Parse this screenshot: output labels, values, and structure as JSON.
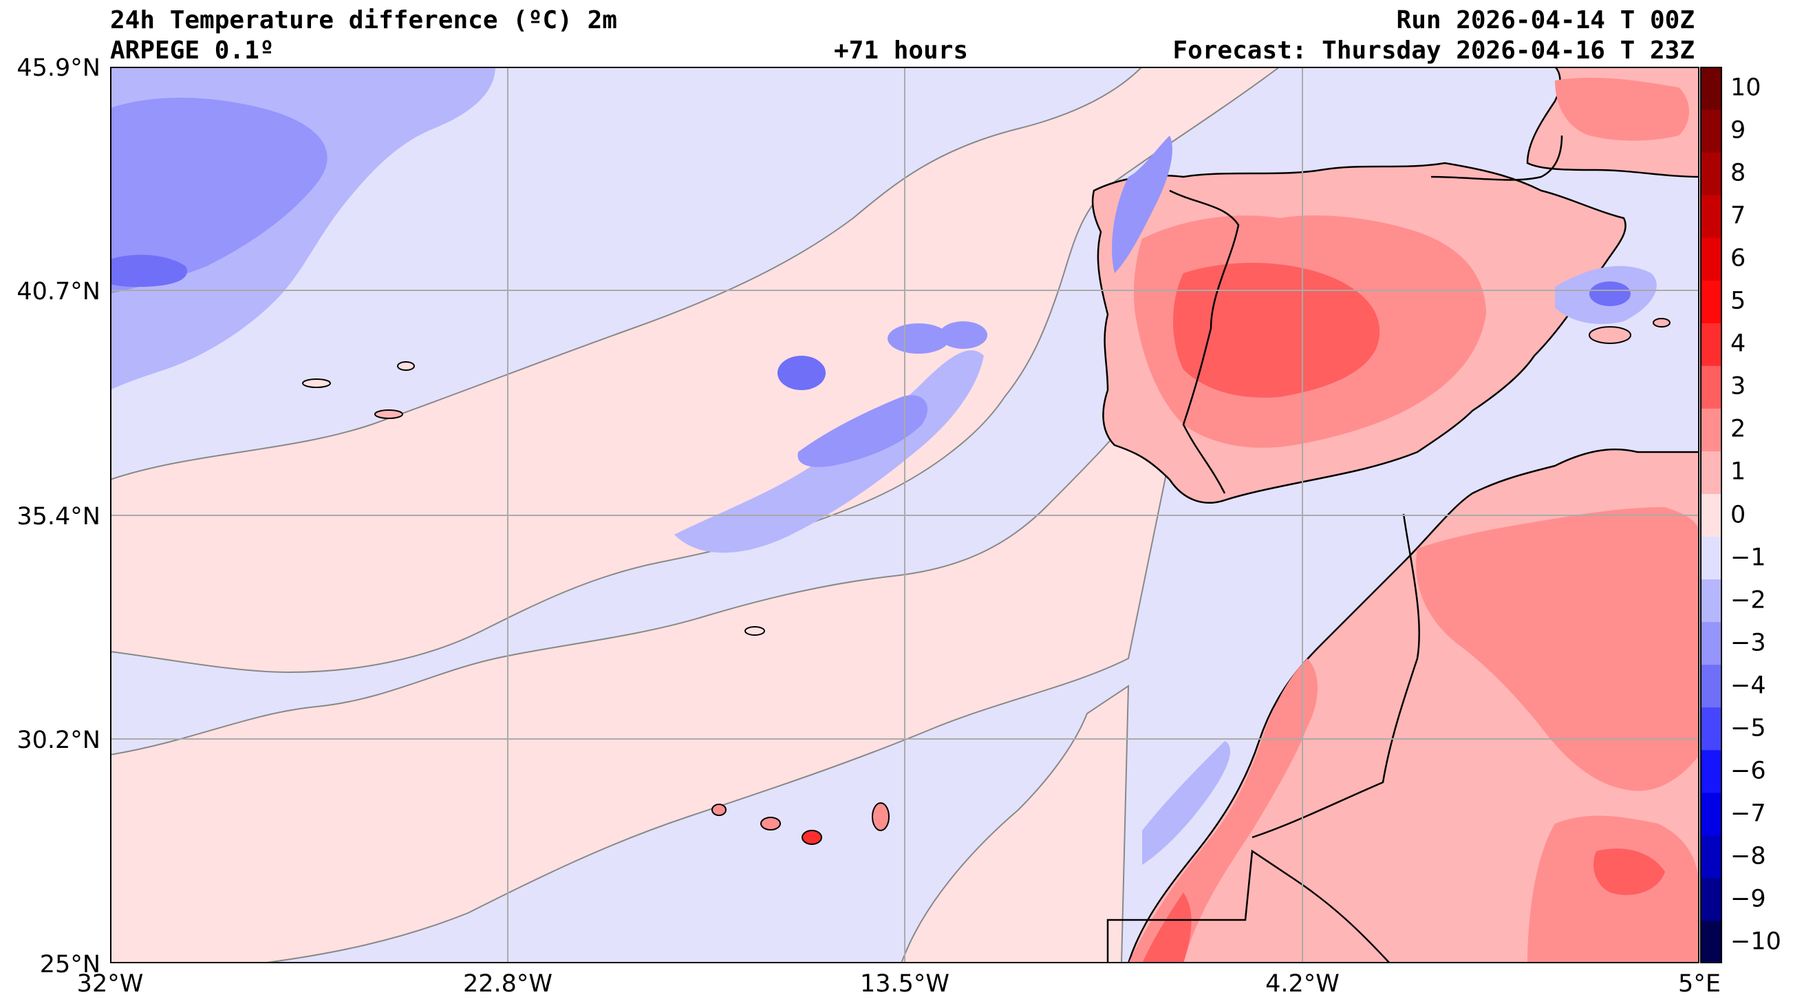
{
  "header": {
    "title": "24h Temperature difference (ºC) 2m",
    "model": "ARPEGE 0.1º",
    "lead": "+71 hours",
    "run": "Run 2026-04-14 T 00Z",
    "forecast": "Forecast: Thursday 2026-04-16 T 23Z"
  },
  "axes": {
    "lat_labels": [
      "45.9°N",
      "40.7°N",
      "35.4°N",
      "30.2°N",
      "25°N"
    ],
    "lon_labels": [
      "32°W",
      "22.8°W",
      "13.5°W",
      "4.2°W",
      "5°E"
    ]
  },
  "colorbar": {
    "tick_labels": [
      "10",
      "9",
      "8",
      "7",
      "6",
      "5",
      "4",
      "3",
      "2",
      "1",
      "0",
      "−1",
      "−2",
      "−3",
      "−4",
      "−5",
      "−6",
      "−7",
      "−8",
      "−9",
      "−10"
    ],
    "colors": [
      "#000050",
      "#00008e",
      "#0000bf",
      "#0000e6",
      "#1414ff",
      "#4646ff",
      "#6f6ff8",
      "#9595fb",
      "#b6b6fc",
      "#e0e0fe",
      "#ffe1e1",
      "#ffb6b6",
      "#ff8f8f",
      "#ff5f5f",
      "#ff2e2e",
      "#ff0a0a",
      "#e60000",
      "#c80000",
      "#aa0000",
      "#8c0000",
      "#6e0000"
    ]
  },
  "map_colors": {
    "ocean_base": "#e2e2fc",
    "light_red": "#ffe1e1",
    "red1": "#ffb6b6",
    "red2": "#ff8f8f",
    "red3": "#ff5f5f",
    "red4": "#ff2e2e",
    "blue1": "#b6b6fc",
    "blue2": "#9595fb",
    "blue3": "#6f6ff8",
    "blue4": "#4646ff"
  }
}
